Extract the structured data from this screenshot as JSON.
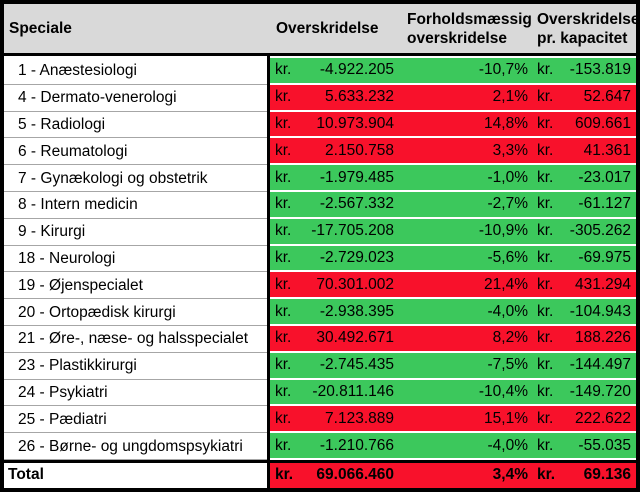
{
  "table": {
    "currency": "kr.",
    "header": {
      "speciale": "Speciale",
      "overskridelse": "Overskridelse",
      "forholdsmaessig_line1": "Forholdsmæssig",
      "forholdsmaessig_line2": "overskridelse",
      "kapacitet_line1": "Overskridelse",
      "kapacitet_line2": "pr. kapacitet"
    },
    "rows": [
      {
        "label": "1 - Anæstesiologi",
        "amount": "-4.922.205",
        "pct": "-10,7%",
        "per_capacity": "-153.819",
        "status": "under"
      },
      {
        "label": "4 - Dermato-venerologi",
        "amount": "5.633.232",
        "pct": "2,1%",
        "per_capacity": "52.647",
        "status": "over"
      },
      {
        "label": "5 - Radiologi",
        "amount": "10.973.904",
        "pct": "14,8%",
        "per_capacity": "609.661",
        "status": "over"
      },
      {
        "label": "6 - Reumatologi",
        "amount": "2.150.758",
        "pct": "3,3%",
        "per_capacity": "41.361",
        "status": "over"
      },
      {
        "label": "7 - Gynækologi og obstetrik",
        "amount": "-1.979.485",
        "pct": "-1,0%",
        "per_capacity": "-23.017",
        "status": "under"
      },
      {
        "label": "8 - Intern medicin",
        "amount": "-2.567.332",
        "pct": "-2,7%",
        "per_capacity": "-61.127",
        "status": "under"
      },
      {
        "label": "9 - Kirurgi",
        "amount": "-17.705.208",
        "pct": "-10,9%",
        "per_capacity": "-305.262",
        "status": "under"
      },
      {
        "label": "18 - Neurologi",
        "amount": "-2.729.023",
        "pct": "-5,6%",
        "per_capacity": "-69.975",
        "status": "under"
      },
      {
        "label": "19 - Øjenspecialet",
        "amount": "70.301.002",
        "pct": "21,4%",
        "per_capacity": "431.294",
        "status": "over"
      },
      {
        "label": "20 - Ortopædisk kirurgi",
        "amount": "-2.938.395",
        "pct": "-4,0%",
        "per_capacity": "-104.943",
        "status": "under"
      },
      {
        "label": "21 - Øre-, næse- og halsspecialet",
        "amount": "30.492.671",
        "pct": "8,2%",
        "per_capacity": "188.226",
        "status": "over"
      },
      {
        "label": "23 - Plastikkirurgi",
        "amount": "-2.745.435",
        "pct": "-7,5%",
        "per_capacity": "-144.497",
        "status": "under"
      },
      {
        "label": "24 - Psykiatri",
        "amount": "-20.811.146",
        "pct": "-10,4%",
        "per_capacity": "-149.720",
        "status": "under"
      },
      {
        "label": "25 - Pædiatri",
        "amount": "7.123.889",
        "pct": "15,1%",
        "per_capacity": "222.622",
        "status": "over"
      },
      {
        "label": "26 - Børne- og ungdomspsykiatri",
        "amount": "-1.210.766",
        "pct": "-4,0%",
        "per_capacity": "-55.035",
        "status": "under"
      }
    ],
    "total": {
      "label": "Total",
      "amount": "69.066.460",
      "pct": "3,4%",
      "per_capacity": "69.136",
      "status": "over"
    }
  },
  "colors": {
    "over_bg": "#f8112b",
    "under_bg": "#3cc85c",
    "header_bg": "#d9d9d9",
    "border": "#000000"
  }
}
